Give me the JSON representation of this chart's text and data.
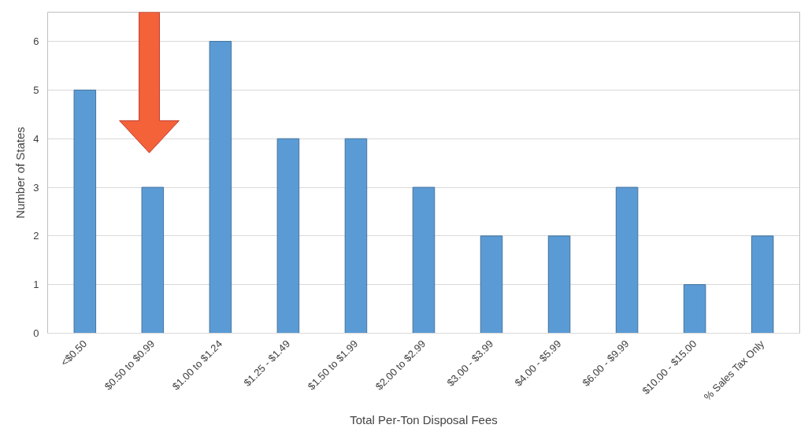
{
  "chart_data": {
    "type": "bar",
    "xlabel": "Total Per-Ton Disposal Fees",
    "ylabel": "Number of States",
    "categories": [
      "<$0.50",
      "$0.50 to $0.99",
      "$1.00 to $1.24",
      "$1.25 - $1.49",
      "$1.50 to $1.99",
      "$2.00 to $2.99",
      "$3.00 - $3.99",
      "$4.00 - $5.99",
      "$6.00 - $9.99",
      "$10.00 - $15.00",
      "% Sales Tax Only"
    ],
    "values": [
      5,
      3,
      6,
      4,
      4,
      3,
      2,
      2,
      3,
      1,
      2
    ],
    "color": "#5b9bd5",
    "ylim": [
      0,
      6.6
    ],
    "yticks": [
      0,
      1,
      2,
      3,
      4,
      5,
      6
    ],
    "grid": "y"
  }
}
